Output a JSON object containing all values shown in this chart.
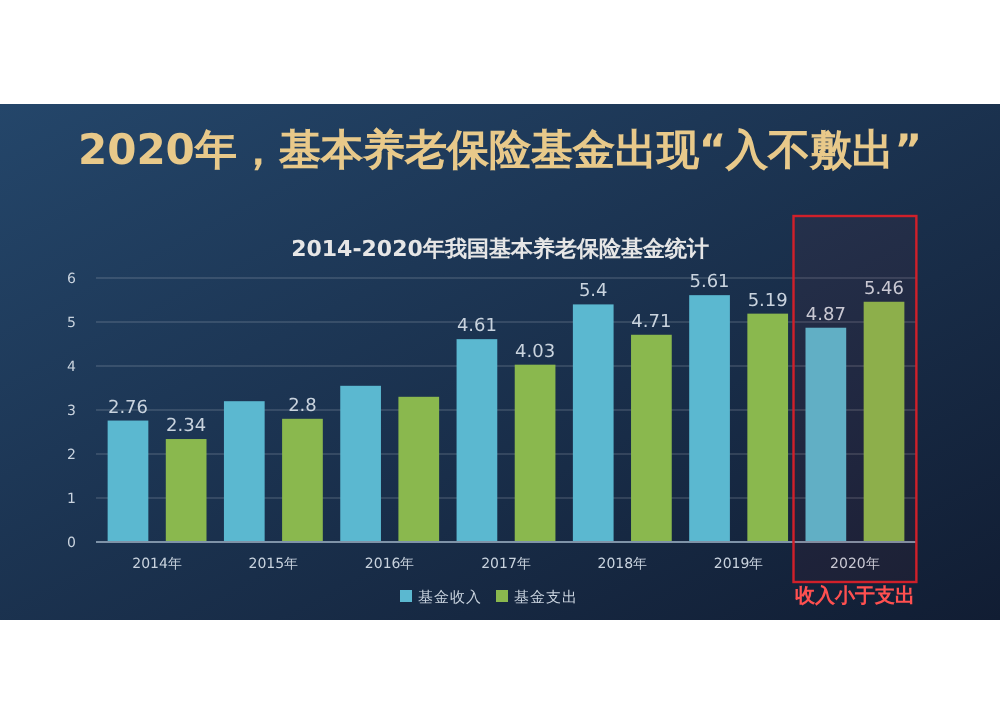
{
  "chart_data": {
    "type": "bar",
    "title": "2020年，基本养老保险基金出现“入不敷出”",
    "subtitle": "2014-2020年我国基本养老保险基金统计",
    "categories": [
      "2014年",
      "2015年",
      "2016年",
      "2017年",
      "2018年",
      "2019年",
      "2020年"
    ],
    "series": [
      {
        "name": "基金收入",
        "color": "#5bb8d0",
        "values": [
          2.76,
          3.2,
          3.55,
          4.61,
          5.4,
          5.61,
          4.87
        ],
        "value_labels": [
          "2.76",
          null,
          null,
          "4.61",
          "5.4",
          "5.61",
          "4.87"
        ]
      },
      {
        "name": "基金支出",
        "color": "#8ab84e",
        "values": [
          2.34,
          2.8,
          3.3,
          4.03,
          4.71,
          5.19,
          5.46
        ],
        "value_labels": [
          "2.34",
          "2.8",
          null,
          "4.03",
          "4.71",
          "5.19",
          "5.46"
        ]
      }
    ],
    "bands": [
      {
        "axis": "x",
        "from": "2020年",
        "to": "2020年",
        "label": "收入小于支出",
        "color": "#d0202a"
      }
    ],
    "ylim": [
      0,
      6
    ],
    "yticks": [
      0,
      1,
      2,
      3,
      4,
      5,
      6
    ],
    "grid": "y",
    "legend": "bottom"
  }
}
